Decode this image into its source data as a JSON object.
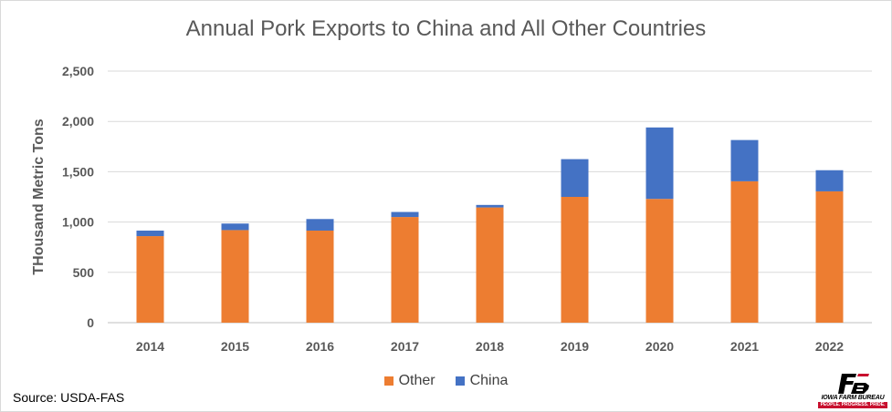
{
  "chart_data": {
    "type": "bar",
    "stacked": true,
    "title": "Annual Pork Exports to China and All Other Countries",
    "xlabel": "",
    "ylabel": "THousand Metric Tons",
    "categories": [
      "2014",
      "2015",
      "2016",
      "2017",
      "2018",
      "2019",
      "2020",
      "2021",
      "2022"
    ],
    "series": [
      {
        "name": "Other",
        "color": "#ED7D31",
        "values": [
          860,
          920,
          915,
          1050,
          1145,
          1250,
          1230,
          1405,
          1305
        ]
      },
      {
        "name": "China",
        "color": "#4472C4",
        "values": [
          55,
          65,
          115,
          50,
          25,
          375,
          710,
          410,
          210
        ]
      }
    ],
    "ylim": [
      0,
      2500
    ],
    "yticks": [
      0,
      500,
      1000,
      1500,
      2000,
      2500
    ],
    "ytick_labels": [
      "0",
      "500",
      "1,000",
      "1,500",
      "2,000",
      "2,500"
    ],
    "grid": true,
    "legend_position": "bottom"
  },
  "source": "Source: USDA-FAS",
  "logo": {
    "name": "IOWA FARM BUREAU",
    "tagline": "PEOPLE. PROGRESS. PRIDE."
  }
}
